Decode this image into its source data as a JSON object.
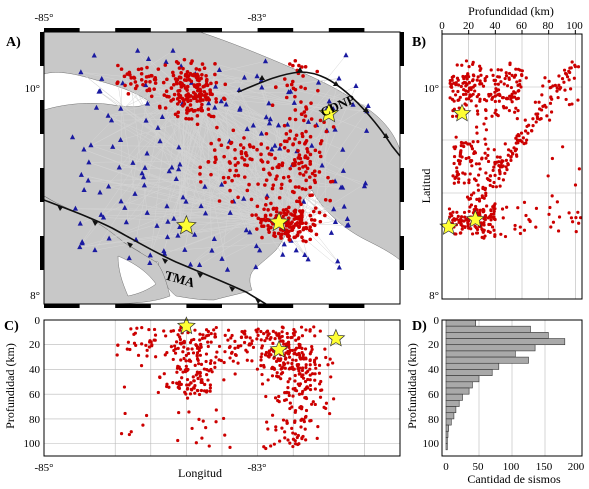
{
  "colors": {
    "land": "#c8c8c8",
    "sea": "#ffffff",
    "ray": "#d4d4d4",
    "quake": "#cc0000",
    "station": "#1a1aa0",
    "star": "#ffff33",
    "bars": "#a9a9a9",
    "trench": "#111111"
  },
  "panels": {
    "a": {
      "letter": "A)",
      "x_ticks": [
        "-85°",
        "-83°"
      ],
      "y_ticks": [
        "10°",
        "8°"
      ],
      "labels": {
        "cdnp": "CDNP",
        "tma": "TMA"
      }
    },
    "b": {
      "letter": "B)",
      "xlabel": "Profundidad (km)",
      "ylabel": "Latitud",
      "x_ticks": [
        "0",
        "20",
        "40",
        "60",
        "80",
        "100"
      ],
      "y_ticks": [
        "10°",
        "8°"
      ]
    },
    "c": {
      "letter": "C)",
      "xlabel": "Longitud",
      "ylabel": "Profundidad (km)",
      "x_ticks": [
        "-85°",
        "-83°"
      ],
      "y_ticks": [
        "0",
        "20",
        "40",
        "60",
        "80",
        "100"
      ]
    },
    "d": {
      "letter": "D)",
      "xlabel": "Cantidad de sismos",
      "ylabel": "Profundidad (km)",
      "x_ticks": [
        "0",
        "50",
        "100",
        "150",
        "200"
      ],
      "y_ticks": [
        "0",
        "20",
        "40",
        "60",
        "80",
        "100"
      ]
    }
  },
  "chart_data": [
    {
      "type": "map",
      "panel": "A",
      "xlim": [
        -85,
        -82.5
      ],
      "ylim": [
        8,
        10.5
      ],
      "main_shocks": [
        {
          "lon": -83.0,
          "lat": 9.75
        },
        {
          "lon": -83.35,
          "lat": 8.75
        },
        {
          "lon": -84.0,
          "lat": 8.72
        }
      ]
    },
    {
      "type": "scatter",
      "panel": "B",
      "xlabel": "Profundidad (km)",
      "ylabel": "Latitud",
      "xlim": [
        0,
        105
      ],
      "ylim": [
        8,
        10.5
      ],
      "main_shocks": [
        {
          "depth": 15,
          "lat": 9.75
        },
        {
          "depth": 25,
          "lat": 8.75
        },
        {
          "depth": 5,
          "lat": 8.68
        }
      ]
    },
    {
      "type": "scatter",
      "panel": "C",
      "xlabel": "Longitud",
      "ylabel": "Profundidad (km)",
      "xlim": [
        -85,
        -82.5
      ],
      "ylim": [
        110,
        0
      ],
      "main_shocks": [
        {
          "lon": -84.0,
          "depth": 5
        },
        {
          "lon": -83.35,
          "depth": 24
        },
        {
          "lon": -82.95,
          "depth": 15
        }
      ]
    },
    {
      "type": "bar",
      "panel": "D",
      "orientation": "horizontal",
      "xlabel": "Cantidad de sismos",
      "ylabel": "Profundidad (km)",
      "xlim": [
        0,
        200
      ],
      "ylim": [
        110,
        0
      ],
      "bin_width_km": 5,
      "categories": [
        "0-5",
        "5-10",
        "10-15",
        "15-20",
        "20-25",
        "25-30",
        "30-35",
        "35-40",
        "40-45",
        "45-50",
        "50-55",
        "55-60",
        "60-65",
        "65-70",
        "70-75",
        "75-80",
        "80-85",
        "85-90",
        "90-95",
        "95-100",
        "100-105"
      ],
      "values": [
        45,
        128,
        155,
        180,
        135,
        105,
        125,
        80,
        70,
        50,
        40,
        35,
        25,
        20,
        15,
        12,
        8,
        4,
        3,
        2,
        2
      ]
    }
  ]
}
